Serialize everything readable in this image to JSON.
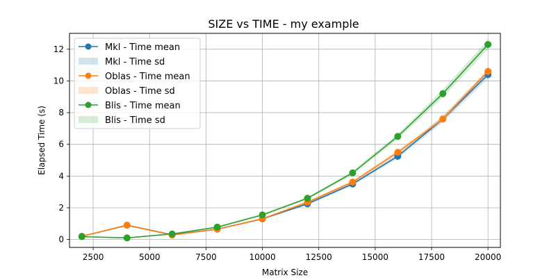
{
  "chart_data": {
    "type": "line",
    "title": "SIZE vs TIME - my example",
    "xlabel": "Matrix Size",
    "ylabel": "Elapsed Time (s)",
    "xlim": [
      1450,
      20550
    ],
    "ylim": [
      -0.5,
      13.0
    ],
    "xticks": [
      2500,
      5000,
      7500,
      10000,
      12500,
      15000,
      17500,
      20000
    ],
    "yticks": [
      0,
      2,
      4,
      6,
      8,
      10,
      12
    ],
    "grid": true,
    "legend_position": "upper-left",
    "x": [
      2000,
      4000,
      6000,
      8000,
      10000,
      12000,
      14000,
      16000,
      18000,
      20000
    ],
    "series": [
      {
        "name": "Mkl - Time mean",
        "sd_name": "Mkl - Time sd",
        "color": "#1f77b4",
        "fill_color": "#1f77b4",
        "values": [
          0.2,
          0.9,
          0.3,
          0.65,
          1.3,
          2.25,
          3.5,
          5.25,
          7.6,
          10.4
        ],
        "sd": [
          0.03,
          0.05,
          0.03,
          0.04,
          0.05,
          0.08,
          0.1,
          0.12,
          0.2,
          0.25
        ]
      },
      {
        "name": "Oblas - Time mean",
        "sd_name": "Oblas - Time sd",
        "color": "#ff7f0e",
        "fill_color": "#ff7f0e",
        "values": [
          0.2,
          0.9,
          0.28,
          0.65,
          1.3,
          2.35,
          3.62,
          5.5,
          7.6,
          10.6
        ],
        "sd": [
          0.03,
          0.05,
          0.03,
          0.04,
          0.05,
          0.08,
          0.1,
          0.15,
          0.15,
          0.2
        ]
      },
      {
        "name": "Blis - Time mean",
        "sd_name": "Blis - Time sd",
        "color": "#2ca02c",
        "fill_color": "#2ca02c",
        "values": [
          0.18,
          0.1,
          0.35,
          0.78,
          1.55,
          2.6,
          4.2,
          6.5,
          9.2,
          12.3
        ],
        "sd": [
          0.03,
          0.03,
          0.03,
          0.04,
          0.06,
          0.08,
          0.12,
          0.15,
          0.25,
          0.3
        ]
      }
    ]
  }
}
